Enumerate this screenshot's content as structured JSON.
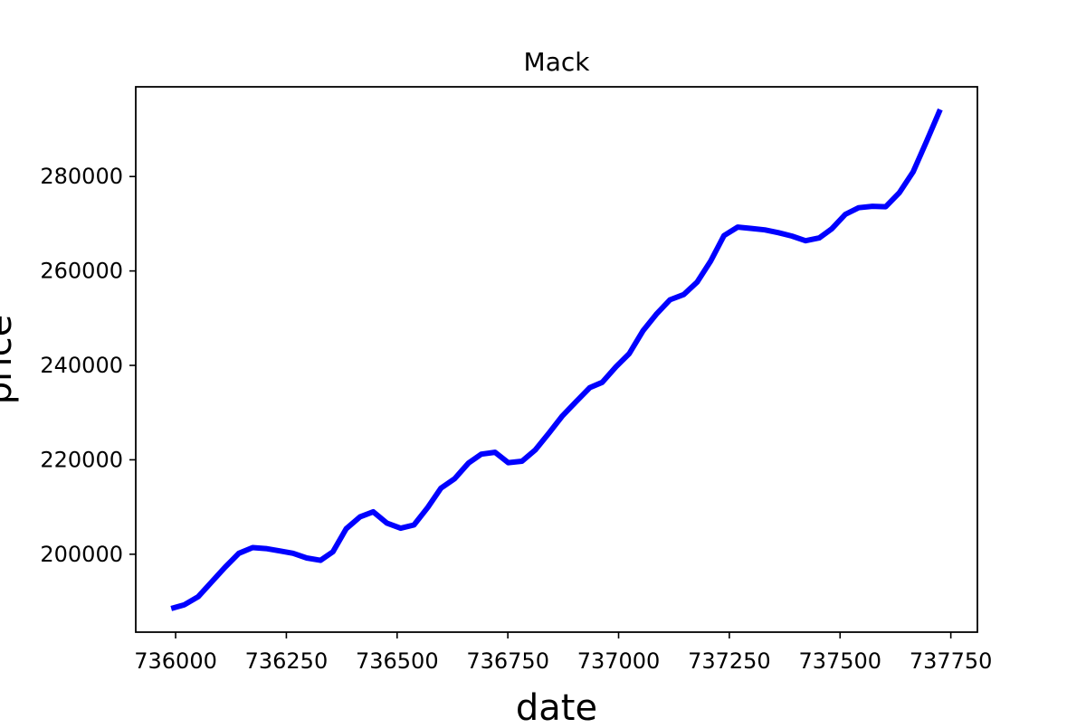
{
  "chart_data": {
    "type": "line",
    "title": "Mack",
    "xlabel": "date",
    "ylabel": "price",
    "xlim": [
      735910,
      737810
    ],
    "ylim": [
      183500,
      299000
    ],
    "x_ticks": [
      736000,
      736250,
      736500,
      736750,
      737000,
      737250,
      737500,
      737750
    ],
    "y_ticks": [
      200000,
      220000,
      240000,
      260000,
      280000
    ],
    "grid": false,
    "legend": "none",
    "series": [
      {
        "color": "#0000ff",
        "x": [
          735990,
          736020,
          736051,
          736082,
          736112,
          736143,
          736174,
          736204,
          736235,
          736265,
          736296,
          736327,
          736355,
          736385,
          736416,
          736446,
          736477,
          736508,
          736538,
          736569,
          736599,
          736630,
          736661,
          736690,
          736721,
          736751,
          736782,
          736812,
          736843,
          736873,
          736904,
          736935,
          736963,
          736994,
          737024,
          737055,
          737085,
          737116,
          737147,
          737177,
          737208,
          737238,
          737269,
          737300,
          737330,
          737361,
          737391,
          737422,
          737453,
          737481,
          737512,
          737542,
          737573,
          737603,
          737634,
          737665,
          737695,
          737726
        ],
        "y": [
          188500,
          189300,
          191000,
          194200,
          197300,
          200200,
          201400,
          201200,
          200700,
          200200,
          199200,
          198700,
          200500,
          205400,
          207900,
          209000,
          206600,
          205500,
          206200,
          209900,
          214000,
          216000,
          219300,
          221200,
          221600,
          219400,
          219700,
          222100,
          225700,
          229300,
          232300,
          235300,
          236400,
          239700,
          242500,
          247300,
          250800,
          253900,
          255000,
          257600,
          262100,
          267500,
          269300,
          269000,
          268700,
          268100,
          267400,
          266400,
          267000,
          268900,
          272000,
          273400,
          273700,
          273600,
          276600,
          281000,
          287400,
          294200
        ]
      }
    ]
  }
}
